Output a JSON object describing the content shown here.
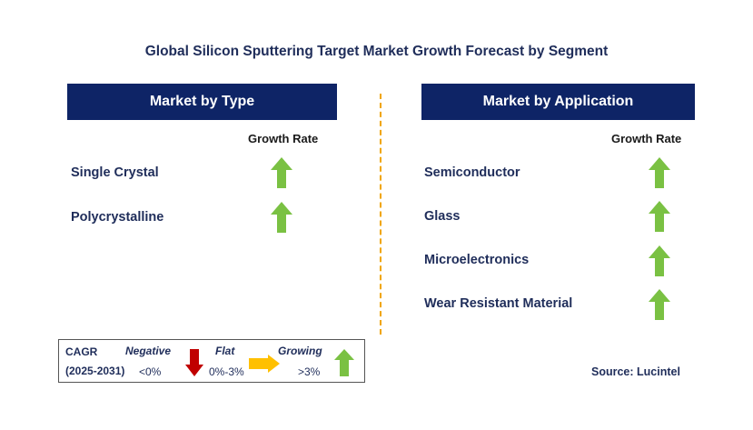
{
  "title": "Global Silicon Sputtering Target Market Growth Forecast by Segment",
  "left_panel": {
    "header": "Market by Type",
    "growth_label": "Growth Rate",
    "items": [
      {
        "label": "Single Crystal",
        "trend": "growing"
      },
      {
        "label": "Polycrystalline",
        "trend": "growing"
      }
    ]
  },
  "right_panel": {
    "header": "Market by Application",
    "growth_label": "Growth Rate",
    "items": [
      {
        "label": "Semiconductor",
        "trend": "growing"
      },
      {
        "label": "Glass",
        "trend": "growing"
      },
      {
        "label": "Microelectronics",
        "trend": "growing"
      },
      {
        "label": "Wear Resistant Material",
        "trend": "growing"
      }
    ]
  },
  "legend": {
    "cagr_label": "CAGR",
    "period": "(2025-2031)",
    "negative_label": "Negative",
    "negative_range": "<0%",
    "flat_label": "Flat",
    "flat_range": "0%-3%",
    "growing_label": "Growing",
    "growing_range": ">3%"
  },
  "source": "Source: Lucintel",
  "colors": {
    "header_bg": "#0e2466",
    "growing": "#7ac143",
    "negative": "#c00000",
    "flat": "#ffc000",
    "divider": "#f0a500"
  }
}
